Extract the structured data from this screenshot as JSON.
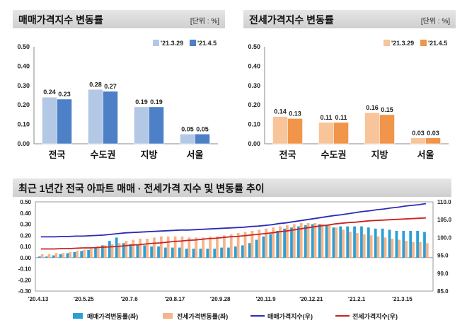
{
  "chart_data": [
    {
      "type": "bar",
      "title": "매매가격지수 변동률",
      "unit": "[단위 : %]",
      "categories": [
        "전국",
        "수도권",
        "지방",
        "서울"
      ],
      "ylim": [
        0,
        0.5
      ],
      "yticks": [
        "0.50",
        "0.40",
        "0.30",
        "0.20",
        "0.10",
        "0.00"
      ],
      "series": [
        {
          "name": "'21.3.29",
          "values": [
            0.24,
            0.28,
            0.19,
            0.05
          ],
          "labels": [
            "0.24",
            "0.28",
            "0.19",
            "0.05"
          ],
          "color": "#b3c8e4"
        },
        {
          "name": "'21.4.5",
          "values": [
            0.23,
            0.27,
            0.19,
            0.05
          ],
          "labels": [
            "0.23",
            "0.27",
            "0.19",
            "0.05"
          ],
          "color": "#4d80c6"
        }
      ],
      "legend": "top-right",
      "grid": false
    },
    {
      "type": "bar",
      "title": "전세가격지수 변동률",
      "unit": "[단위 : %]",
      "categories": [
        "전국",
        "수도권",
        "지방",
        "서울"
      ],
      "ylim": [
        0,
        0.5
      ],
      "yticks": [
        "0.50",
        "0.40",
        "0.30",
        "0.20",
        "0.10",
        "0.00"
      ],
      "series": [
        {
          "name": "'21.3.29",
          "values": [
            0.14,
            0.11,
            0.16,
            0.03
          ],
          "labels": [
            "0.14",
            "0.11",
            "0.16",
            "0.03"
          ],
          "color": "#f8c49a"
        },
        {
          "name": "'21.4.5",
          "values": [
            0.13,
            0.11,
            0.15,
            0.03
          ],
          "labels": [
            "0.13",
            "0.11",
            "0.15",
            "0.03"
          ],
          "color": "#f0954a"
        }
      ],
      "legend": "top-right",
      "grid": false
    },
    {
      "type": "bar+line",
      "title": "최근 1년간 전국 아파트 매매 · 전세가격 지수 및 변동률 추이",
      "x_ticks": [
        "'20.4.13",
        "'20.5.25",
        "'20.7.6",
        "'20.8.17",
        "'20.9.28",
        "'20.11.9",
        "'20.12.21",
        "'21.2.1",
        "'21.3.15"
      ],
      "y_left": {
        "ylim": [
          -0.3,
          0.5
        ],
        "ticks": [
          "0.50",
          "0.40",
          "0.30",
          "0.20",
          "0.10",
          "0.00",
          "-0.10",
          "-0.20",
          "-0.30"
        ]
      },
      "y_right": {
        "ylim": [
          85.0,
          110.0
        ],
        "ticks": [
          "110.0",
          "105.0",
          "100.0",
          "95.0",
          "90.0",
          "85.0"
        ]
      },
      "series": [
        {
          "name": "매매가격변동률(좌)",
          "type": "bar",
          "axis": "left",
          "color": "#2b9fd4",
          "values": [
            0.01,
            0.01,
            0.02,
            0.03,
            0.04,
            0.05,
            0.06,
            0.07,
            0.09,
            0.11,
            0.15,
            0.18,
            0.13,
            0.12,
            0.12,
            0.11,
            0.1,
            0.1,
            0.09,
            0.09,
            0.09,
            0.08,
            0.08,
            0.08,
            0.08,
            0.08,
            0.09,
            0.09,
            0.1,
            0.11,
            0.13,
            0.16,
            0.19,
            0.21,
            0.24,
            0.26,
            0.27,
            0.28,
            0.29,
            0.3,
            0.3,
            0.29,
            0.27,
            0.28,
            0.28,
            0.28,
            0.28,
            0.27,
            0.26,
            0.26,
            0.25,
            0.24,
            0.24,
            0.24,
            0.24,
            0.23
          ]
        },
        {
          "name": "전세가격변동률(좌)",
          "type": "bar",
          "axis": "left",
          "color": "#f5b48a",
          "values": [
            0.03,
            0.03,
            0.04,
            0.04,
            0.05,
            0.06,
            0.07,
            0.08,
            0.1,
            0.11,
            0.12,
            0.13,
            0.15,
            0.16,
            0.17,
            0.17,
            0.18,
            0.19,
            0.19,
            0.19,
            0.19,
            0.18,
            0.18,
            0.18,
            0.19,
            0.19,
            0.2,
            0.21,
            0.22,
            0.23,
            0.24,
            0.25,
            0.26,
            0.27,
            0.28,
            0.29,
            0.3,
            0.31,
            0.31,
            0.31,
            0.3,
            0.29,
            0.27,
            0.25,
            0.23,
            0.22,
            0.21,
            0.2,
            0.19,
            0.18,
            0.17,
            0.16,
            0.15,
            0.14,
            0.14,
            0.13
          ]
        },
        {
          "name": "매매가격지수(우)",
          "type": "line",
          "axis": "right",
          "color": "#2c2cb8",
          "values": [
            100.2,
            100.2,
            100.2,
            100.3,
            100.3,
            100.4,
            100.4,
            100.5,
            100.6,
            100.7,
            100.9,
            101.1,
            101.3,
            101.4,
            101.5,
            101.6,
            101.7,
            101.8,
            101.9,
            102.0,
            102.1,
            102.1,
            102.2,
            102.3,
            102.4,
            102.5,
            102.6,
            102.7,
            102.8,
            102.9,
            103.1,
            103.2,
            103.4,
            103.6,
            103.9,
            104.1,
            104.4,
            104.7,
            105.0,
            105.3,
            105.6,
            105.9,
            106.2,
            106.4,
            106.7,
            107.0,
            107.3,
            107.5,
            107.8,
            108.0,
            108.3,
            108.5,
            108.8,
            109.0,
            109.2,
            109.5
          ]
        },
        {
          "name": "전세가격지수(우)",
          "type": "line",
          "axis": "right",
          "color": "#cc2222",
          "values": [
            96.8,
            96.8,
            96.8,
            96.9,
            96.9,
            97.0,
            97.1,
            97.1,
            97.2,
            97.3,
            97.4,
            97.5,
            97.7,
            97.9,
            98.0,
            98.2,
            98.4,
            98.5,
            98.7,
            98.9,
            99.0,
            99.2,
            99.3,
            99.5,
            99.7,
            99.8,
            100.0,
            100.2,
            100.3,
            100.5,
            100.7,
            100.9,
            101.1,
            101.3,
            101.6,
            101.8,
            102.1,
            102.4,
            102.7,
            103.0,
            103.3,
            103.5,
            103.8,
            104.0,
            104.2,
            104.3,
            104.5,
            104.7,
            104.8,
            104.9,
            105.0,
            105.1,
            105.2,
            105.3,
            105.4,
            105.5
          ]
        }
      ],
      "legend": "bottom"
    }
  ]
}
